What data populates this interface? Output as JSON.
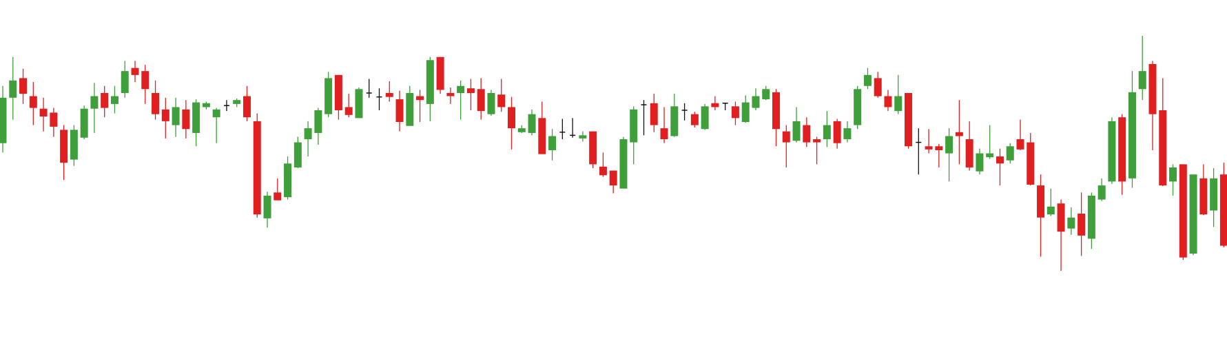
{
  "chart_data": {
    "type": "candlestick",
    "up_color": "#3f9f3b",
    "down_color": "#e02020",
    "flat_color": "#111111",
    "open": [
      217,
      275,
      300,
      277,
      261,
      256,
      234,
      196,
      224,
      261,
      281,
      267,
      281,
      313,
      309,
      281,
      260,
      240,
      260,
      230,
      263,
      250,
      265,
      267,
      277,
      245,
      121,
      154,
      148,
      186,
      222,
      230,
      254,
      304,
      263,
      249,
      281,
      276,
      281,
      273,
      239,
      277,
      267,
      327,
      281,
      281,
      287,
      286,
      254,
      279,
      263,
      231,
      230,
      249,
      208,
      231,
      227,
      223,
      232,
      187,
      182,
      159,
      218,
      266,
      268,
      236,
      226,
      259,
      254,
      235,
      268,
      268,
      264,
      244,
      262,
      273,
      282,
      232,
      220,
      240,
      222,
      222,
      245,
      222,
      240,
      290,
      300,
      277,
      258,
      281,
      218,
      213,
      213,
      204,
      231,
      222,
      181,
      199,
      200,
      195,
      222,
      218,
      163,
      126,
      140,
      108,
      127,
      95,
      145,
      168,
      250,
      172,
      286,
      318,
      259,
      168,
      190,
      76,
      172,
      131,
      177
    ],
    "close": [
      275,
      297,
      280,
      262,
      251,
      238,
      192,
      234,
      261,
      277,
      262,
      277,
      309,
      304,
      286,
      254,
      245,
      263,
      235,
      269,
      268,
      260,
      265,
      272,
      250,
      126,
      150,
      144,
      191,
      218,
      236,
      259,
      300,
      259,
      253,
      286,
      281,
      276,
      276,
      244,
      281,
      272,
      323,
      285,
      277,
      290,
      281,
      258,
      281,
      263,
      236,
      236,
      254,
      203,
      226,
      231,
      227,
      227,
      190,
      176,
      163,
      222,
      260,
      266,
      240,
      222,
      264,
      259,
      240,
      264,
      263,
      268,
      249,
      269,
      277,
      286,
      235,
      218,
      245,
      218,
      218,
      240,
      217,
      236,
      286,
      304,
      277,
      263,
      277,
      213,
      218,
      209,
      208,
      226,
      226,
      186,
      204,
      204,
      191,
      213,
      209,
      164,
      122,
      136,
      104,
      122,
      99,
      150,
      163,
      245,
      168,
      282,
      309,
      254,
      163,
      186,
      71,
      177,
      126,
      172,
      86
    ],
    "high": [
      290,
      327,
      312,
      295,
      275,
      262,
      240,
      240,
      265,
      294,
      290,
      290,
      322,
      322,
      317,
      297,
      275,
      275,
      272,
      273,
      270,
      262,
      272,
      274,
      290,
      255,
      155,
      172,
      200,
      225,
      245,
      262,
      308,
      304,
      280,
      288,
      299,
      287,
      296,
      284,
      290,
      285,
      327,
      327,
      288,
      297,
      299,
      300,
      285,
      299,
      276,
      240,
      260,
      270,
      235,
      248,
      249,
      232,
      232,
      205,
      182,
      225,
      264,
      272,
      280,
      263,
      280,
      268,
      257,
      267,
      277,
      268,
      270,
      278,
      287,
      290,
      286,
      240,
      263,
      250,
      225,
      258,
      248,
      245,
      290,
      313,
      308,
      285,
      304,
      281,
      236,
      235,
      216,
      236,
      272,
      245,
      210,
      240,
      210,
      217,
      247,
      230,
      177,
      159,
      145,
      135,
      154,
      154,
      172,
      250,
      254,
      309,
      354,
      322,
      300,
      190,
      190,
      177,
      190,
      185,
      192
    ],
    "low": [
      205,
      247,
      267,
      240,
      232,
      225,
      170,
      188,
      222,
      230,
      250,
      255,
      275,
      295,
      267,
      247,
      223,
      225,
      223,
      213,
      260,
      217,
      258,
      263,
      245,
      122,
      109,
      144,
      145,
      185,
      200,
      215,
      250,
      247,
      250,
      249,
      275,
      259,
      270,
      232,
      239,
      244,
      245,
      280,
      267,
      247,
      259,
      247,
      252,
      257,
      209,
      230,
      227,
      203,
      195,
      222,
      224,
      219,
      185,
      174,
      153,
      159,
      190,
      227,
      231,
      217,
      225,
      246,
      237,
      234,
      259,
      259,
      240,
      243,
      259,
      272,
      213,
      186,
      218,
      212,
      190,
      212,
      210,
      218,
      235,
      286,
      275,
      258,
      254,
      210,
      177,
      204,
      186,
      168,
      190,
      182,
      177,
      197,
      163,
      191,
      208,
      163,
      72,
      124,
      54,
      100,
      73,
      82,
      143,
      165,
      151,
      160,
      272,
      208,
      162,
      150,
      68,
      74,
      125,
      110,
      84
    ]
  }
}
